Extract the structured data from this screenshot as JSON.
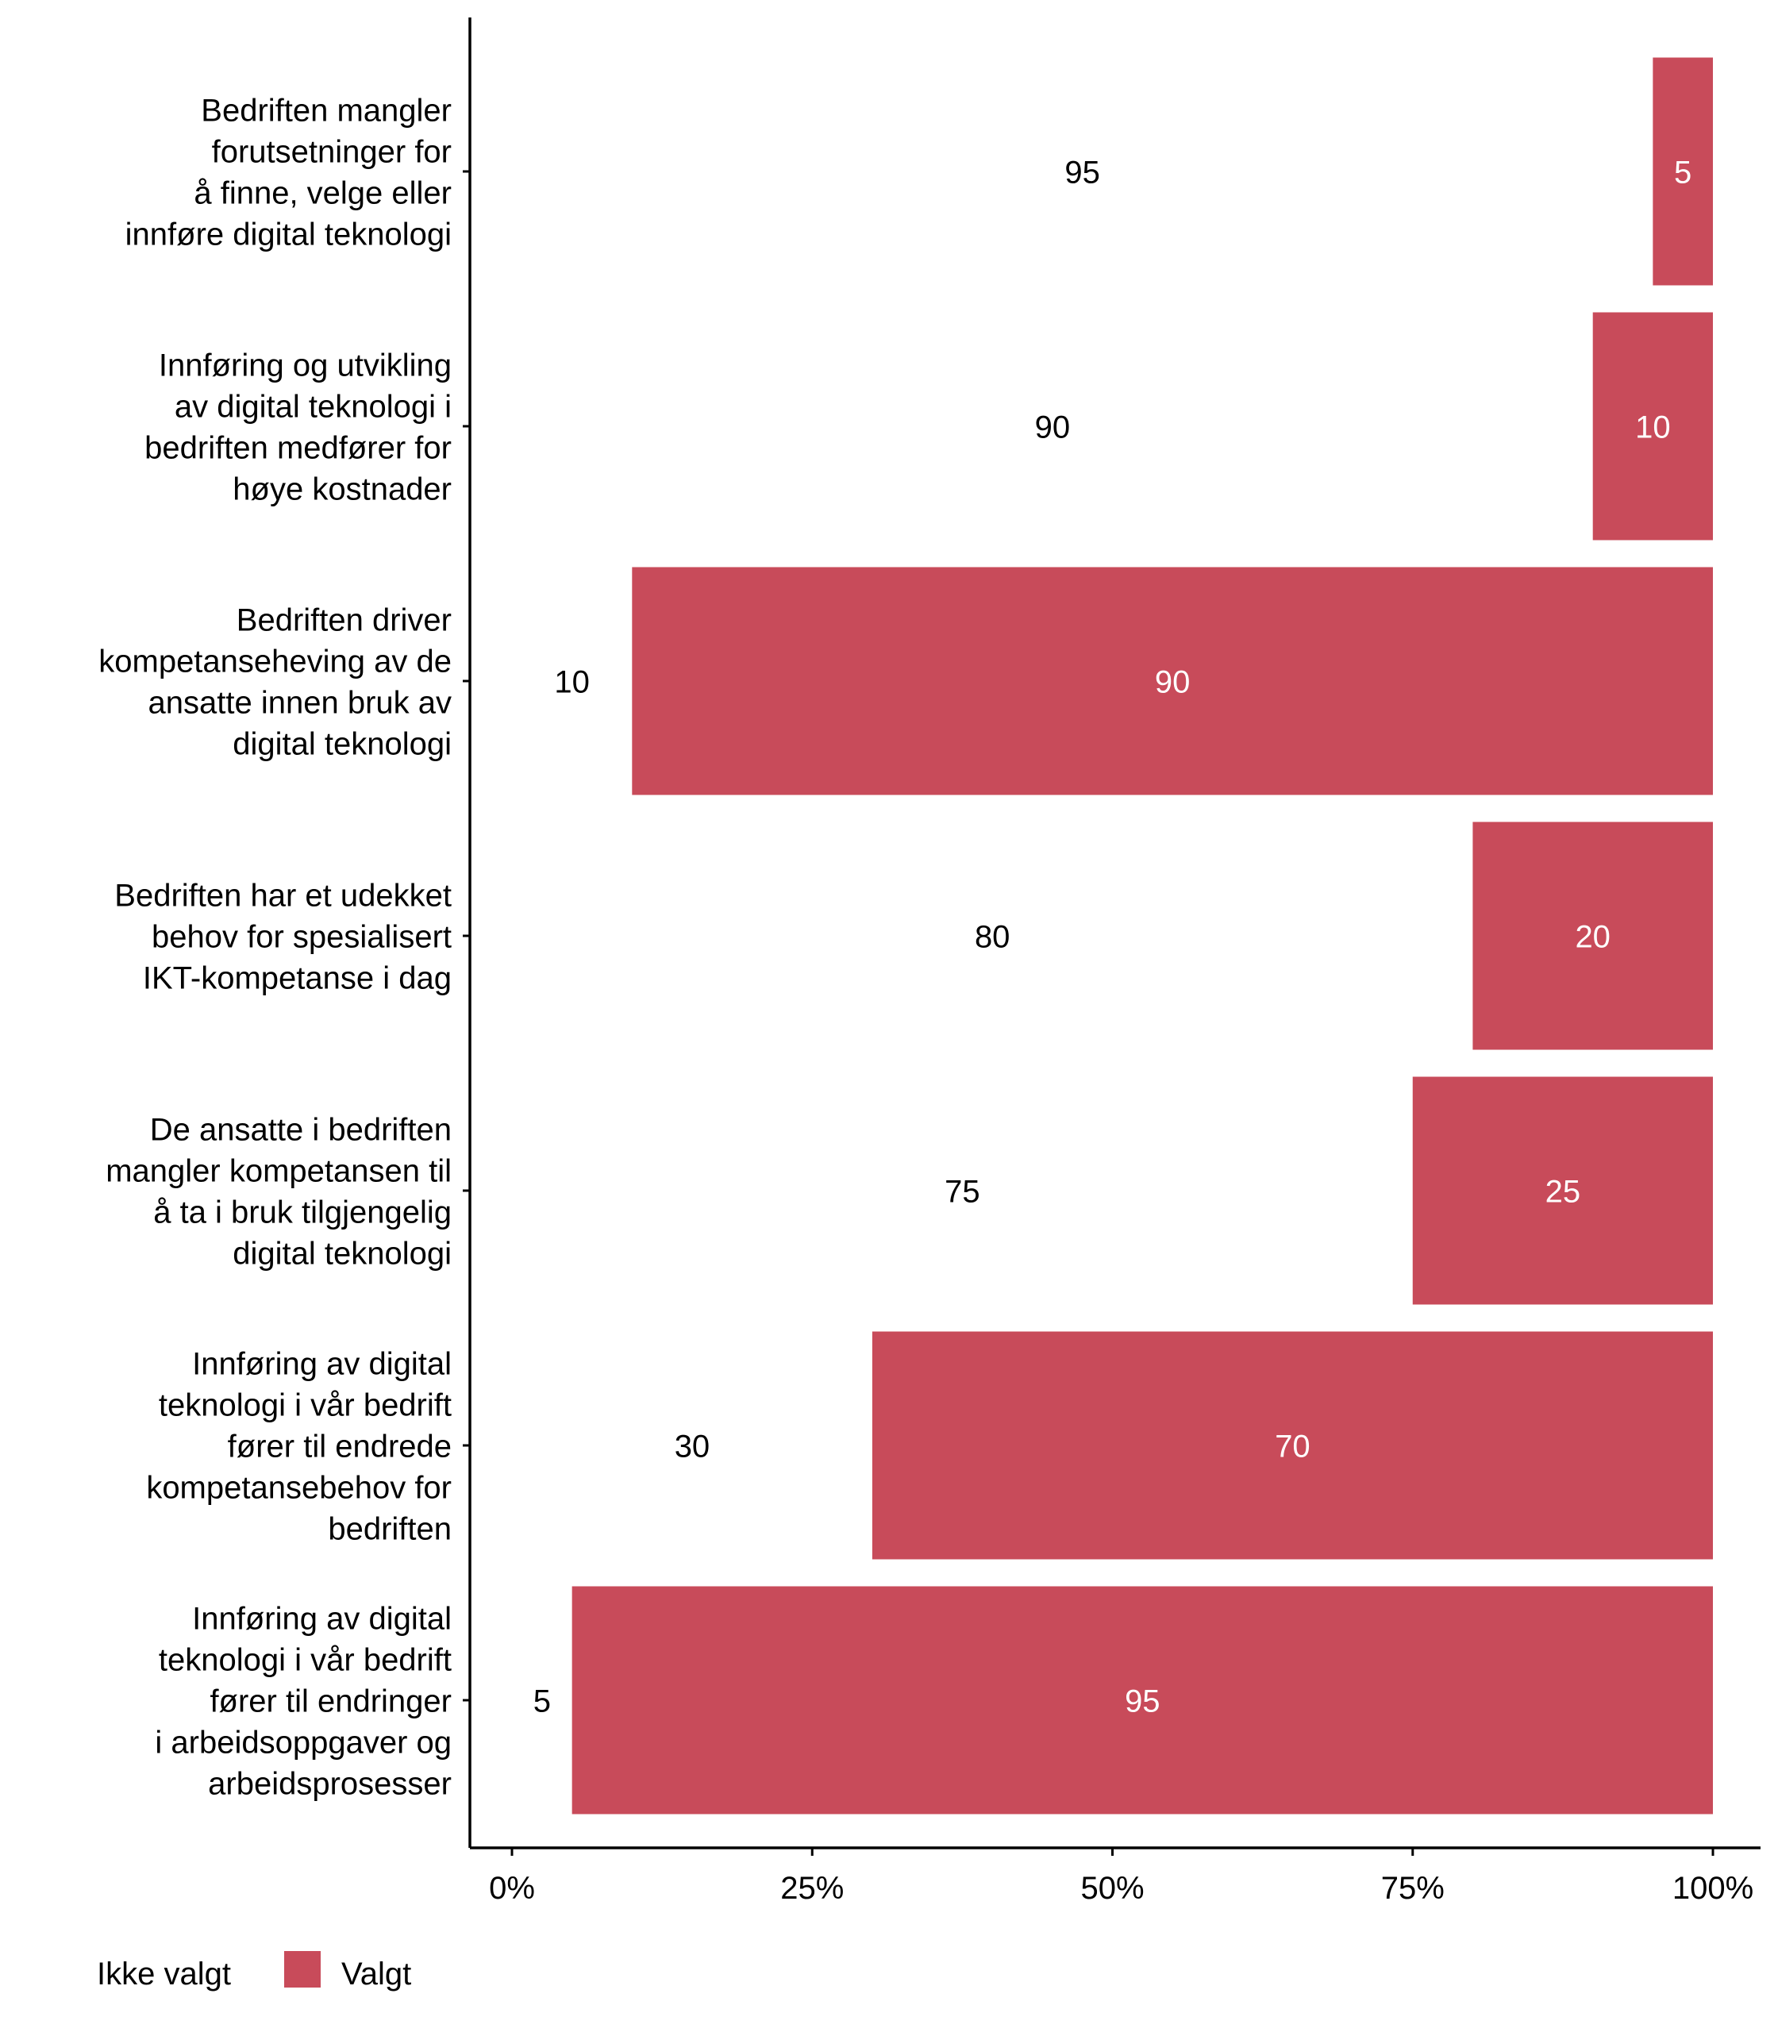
{
  "chart_data": {
    "type": "bar",
    "orientation": "horizontal",
    "stacked": true,
    "categories": [
      "Bedriften mangler forutsetninger for å finne, velge eller innføre digital teknologi",
      "Innføring og utvikling av digital teknologi i bedriften medfører for høye kostnader",
      "Bedriften driver kompetanseheving av de ansatte innen bruk av digital teknologi",
      "Bedriften har et udekket behov for spesialisert IKT-kompetanse i dag",
      "De ansatte i bedriften mangler kompetansen til å ta i bruk tilgjengelig digital teknologi",
      "Innføring av digital teknologi i vår bedrift fører til endrede kompetansebehov for bedriften",
      "Innføring av digital teknologi i vår bedrift fører til endringer i arbeidsoppgaver og arbeidsprosesser"
    ],
    "category_lines": [
      [
        "Bedriften mangler",
        "forutsetninger for",
        "å finne, velge eller",
        "innføre digital teknologi"
      ],
      [
        "Innføring og utvikling",
        "av digital teknologi i",
        "bedriften medfører for",
        "høye kostnader"
      ],
      [
        "Bedriften driver",
        "kompetanseheving av de",
        "ansatte innen bruk av",
        "digital teknologi"
      ],
      [
        "Bedriften har et udekket",
        "behov for spesialisert",
        "IKT-kompetanse i dag"
      ],
      [
        "De ansatte i bedriften",
        "mangler kompetansen til",
        "å ta i bruk tilgjengelig",
        "digital teknologi"
      ],
      [
        "Innføring av digital",
        "teknologi i vår bedrift",
        "fører til endrede",
        "kompetansebehov for",
        "bedriften"
      ],
      [
        "Innføring av digital",
        "teknologi i vår bedrift",
        "fører til endringer",
        "i arbeidsoppgaver og",
        "arbeidsprosesser"
      ]
    ],
    "series": [
      {
        "name": "Ikke valgt",
        "values": [
          95,
          90,
          10,
          80,
          75,
          30,
          5
        ],
        "color": "#FFFFFF",
        "label_color": "#000000"
      },
      {
        "name": "Valgt",
        "values": [
          5,
          10,
          90,
          20,
          25,
          70,
          95
        ],
        "color": "#C84B5A",
        "label_color": "#FFFFFF"
      }
    ],
    "xlim": [
      0,
      100
    ],
    "x_ticks": [
      "0%",
      "25%",
      "50%",
      "75%",
      "100%"
    ],
    "x_tick_values": [
      0,
      25,
      50,
      75,
      100
    ],
    "xlabel": "",
    "ylabel": "",
    "grid": false,
    "legend_placement": "bottom-left"
  }
}
